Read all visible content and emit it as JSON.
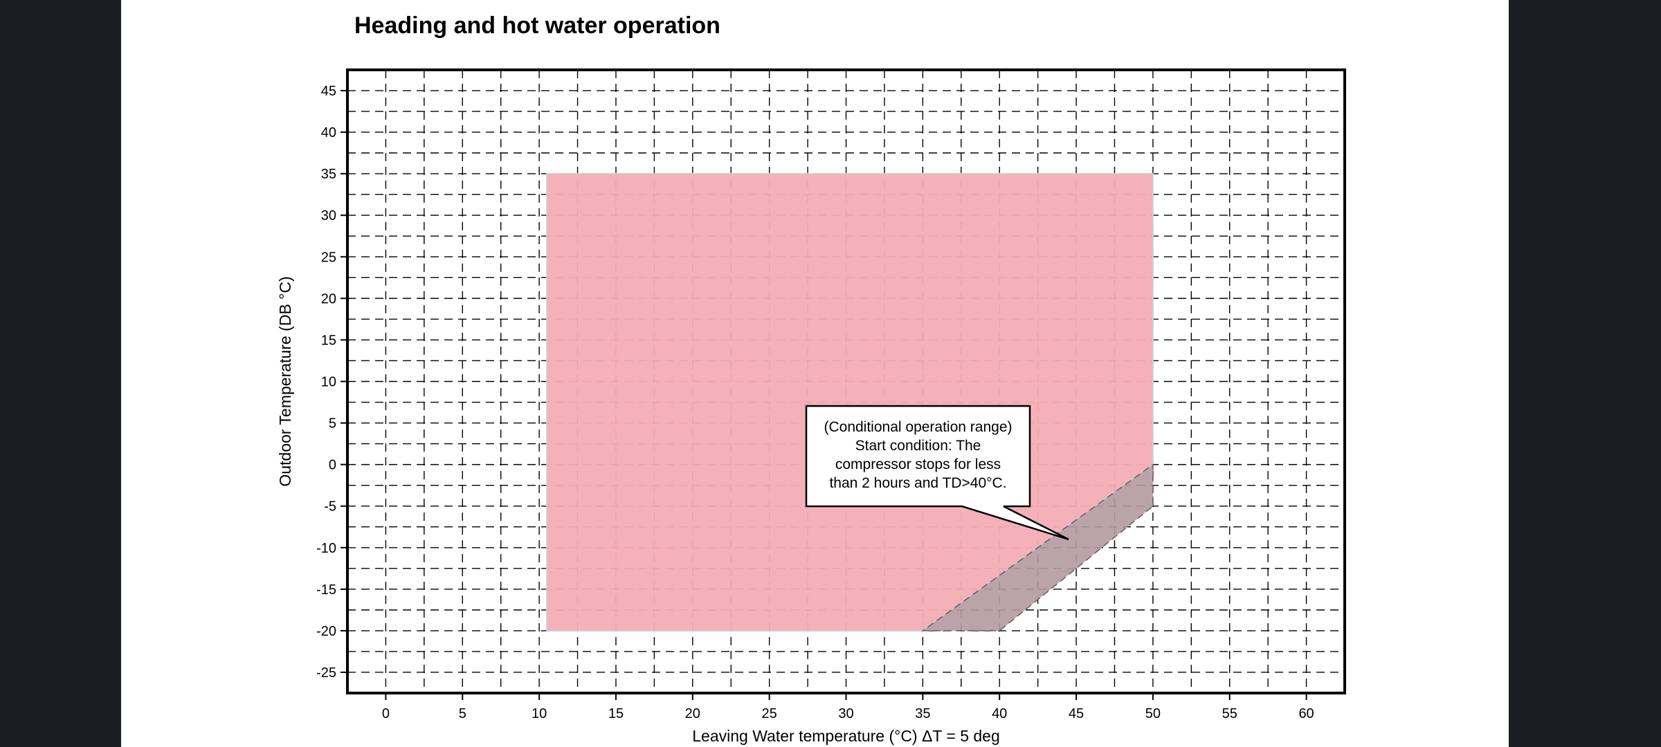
{
  "page": {
    "heading": "Heading and hot water operation"
  },
  "colors": {
    "viewer_background": "#1b1d21",
    "page_background": "#ffffff",
    "normal_range_fill": "#f4adb4",
    "conditional_range_fill": "#b39aa0"
  },
  "chart_data": {
    "type": "area",
    "xlabel": "Leaving Water temperature (°C) ΔT = 5 deg",
    "ylabel": "Outdoor Temperature (DB °C)",
    "xlim": [
      -2.5,
      62.5
    ],
    "ylim": [
      -27.5,
      47.5
    ],
    "x_ticks": [
      0,
      5,
      10,
      15,
      20,
      25,
      30,
      35,
      40,
      45,
      50,
      55,
      60
    ],
    "y_ticks": [
      45,
      40,
      35,
      30,
      25,
      20,
      15,
      10,
      5,
      0,
      -5,
      -10,
      -15,
      -20,
      -25
    ],
    "grid": true,
    "regions": [
      {
        "role": "normal operation range",
        "polygon": [
          [
            10.5,
            35
          ],
          [
            50,
            35
          ],
          [
            50,
            0
          ],
          [
            35,
            -20
          ],
          [
            10.5,
            -20
          ]
        ]
      },
      {
        "role": "conditional operation range",
        "polygon": [
          [
            35,
            -20
          ],
          [
            40,
            -20
          ],
          [
            50,
            -5
          ],
          [
            50,
            0
          ]
        ]
      }
    ],
    "annotation": {
      "lines": [
        "(Conditional operation range)",
        "Start condition: The",
        "compressor stops for less",
        "than 2 hours and TD>40°C."
      ],
      "points_to": [
        44.5,
        -9
      ]
    }
  }
}
